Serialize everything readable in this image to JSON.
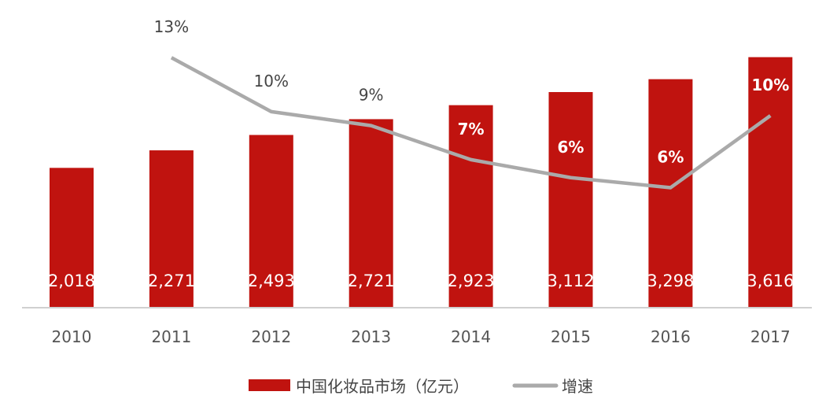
{
  "chart_data": {
    "type": "bar+line",
    "title": "",
    "xlabel": "",
    "ylabel": "",
    "categories": [
      "2010",
      "2011",
      "2012",
      "2013",
      "2014",
      "2015",
      "2016",
      "2017"
    ],
    "series": [
      {
        "name": "中国化妆品市场（亿元）",
        "type": "bar",
        "axis": "left",
        "color": "#c0130f",
        "values": [
          2018,
          2271,
          2493,
          2721,
          2923,
          3112,
          3298,
          3616
        ],
        "labels": [
          "2,018",
          "2,271",
          "2,493",
          "2,721",
          "2,923",
          "3,112",
          "3,298",
          "3,616"
        ]
      },
      {
        "name": "增速",
        "type": "line",
        "axis": "right",
        "color": "#aaaaaa",
        "values": [
          null,
          12.5,
          9.8,
          9.1,
          7.4,
          6.5,
          6.0,
          9.6
        ],
        "labels": [
          null,
          "13%",
          "10%",
          "9%",
          "7%",
          "6%",
          "6%",
          "10%"
        ]
      }
    ],
    "ylim": [
      0,
      4100
    ],
    "y2lim": [
      0,
      14.2
    ],
    "y_axis_visible": false,
    "grid": false,
    "legend": "bottom-center"
  }
}
